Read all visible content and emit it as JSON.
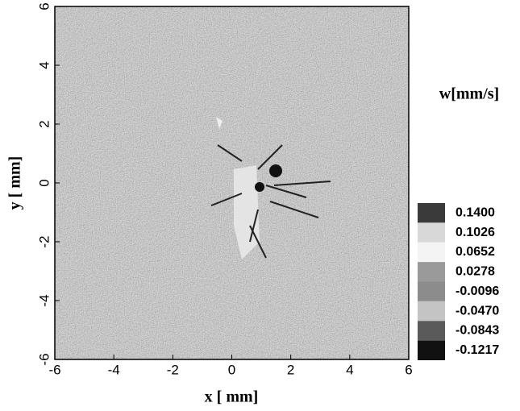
{
  "chart_data": {
    "type": "heatmap",
    "x_label": "x [ mm]",
    "y_label": "y [ mm]",
    "colorbar_title": "w[mm/s]",
    "xlim": [
      -6,
      6
    ],
    "ylim": [
      -6,
      6
    ],
    "xticks": [
      -6,
      -4,
      -2,
      0,
      2,
      4,
      6
    ],
    "yticks": [
      -6,
      -4,
      -2,
      0,
      2,
      4,
      6
    ],
    "colorbar": {
      "ticks": [
        {
          "value": 0.14,
          "label": "0.1400"
        },
        0.1026,
        0.0652,
        0.0278,
        -0.0096,
        {
          "value": -0.047,
          "label": "-0.0470"
        },
        -0.0843,
        -0.1217
      ],
      "colors": [
        "#3a3a3a",
        "#d8d8d8",
        "#f4f4f4",
        "#9a9a9a",
        "#8c8c8c",
        "#c4c4c4",
        "#5a5a5a",
        "#111111"
      ]
    }
  }
}
